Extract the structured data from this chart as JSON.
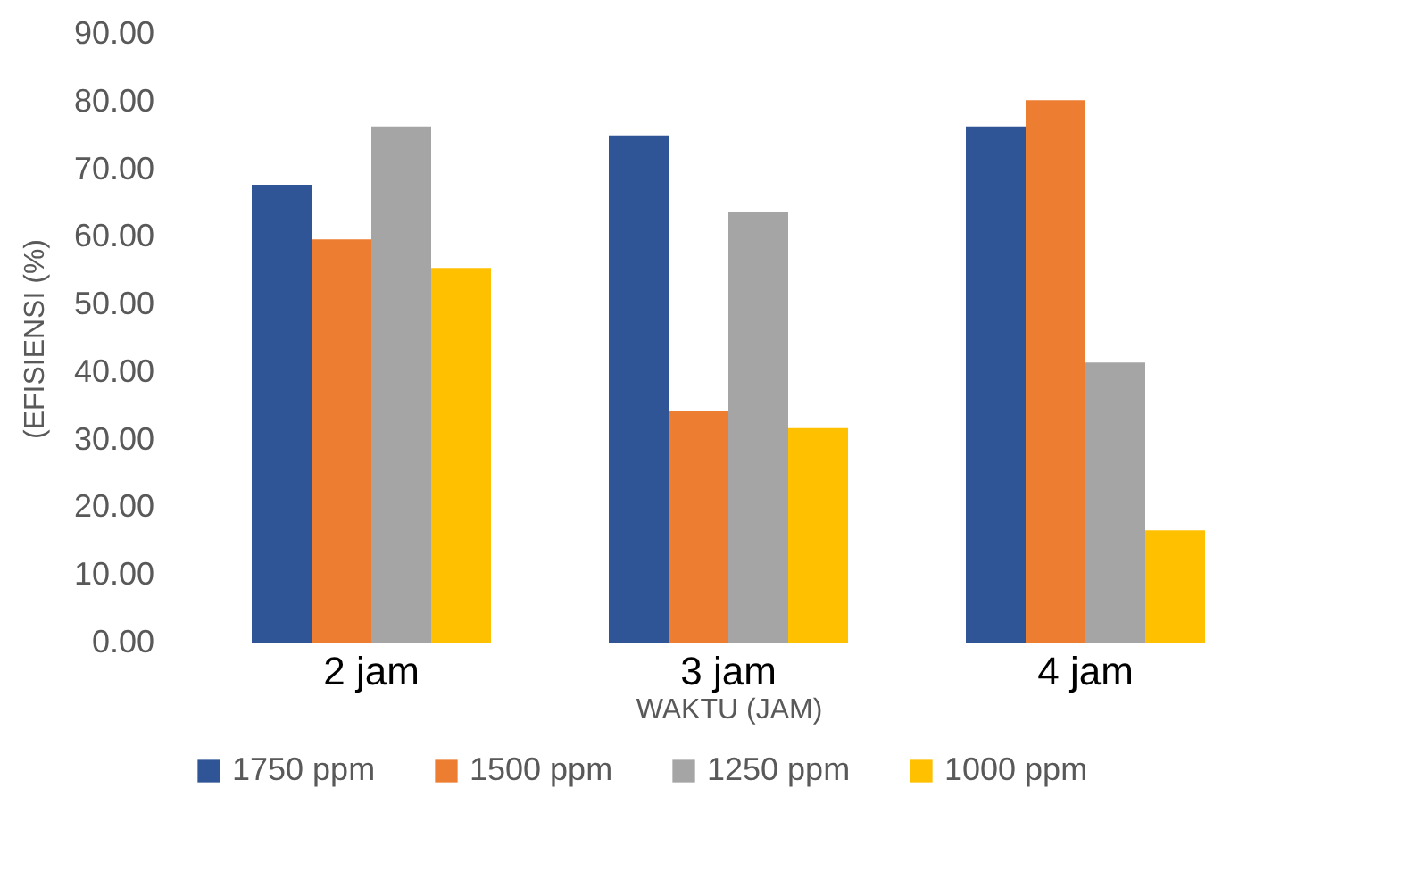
{
  "chart_data": {
    "type": "bar",
    "xlabel": "WAKTU (JAM)",
    "ylabel": "(EFISIENSI (%)",
    "categories": [
      "2 jam",
      "3 jam",
      "4 jam"
    ],
    "series": [
      {
        "name": "1750 ppm",
        "color": "#2f5597",
        "values": [
          67.7,
          75.0,
          76.3
        ]
      },
      {
        "name": "1500 ppm",
        "color": "#ed7d31",
        "values": [
          59.6,
          34.3,
          80.2
        ]
      },
      {
        "name": "1250 ppm",
        "color": "#a5a5a5",
        "values": [
          76.3,
          63.6,
          41.4
        ]
      },
      {
        "name": "1000 ppm",
        "color": "#ffc000",
        "values": [
          55.4,
          31.7,
          16.6
        ]
      }
    ],
    "ylim": [
      0,
      90
    ],
    "yticks": [
      {
        "value": 0,
        "label": "0.00"
      },
      {
        "value": 10,
        "label": "10.00"
      },
      {
        "value": 20,
        "label": "20.00"
      },
      {
        "value": 30,
        "label": "30.00"
      },
      {
        "value": 40,
        "label": "40.00"
      },
      {
        "value": 50,
        "label": "50.00"
      },
      {
        "value": 60,
        "label": "60.00"
      },
      {
        "value": 70,
        "label": "70.00"
      },
      {
        "value": 80,
        "label": "80.00"
      },
      {
        "value": 90,
        "label": "90.00"
      }
    ],
    "grid": false,
    "legend": "bottom"
  }
}
